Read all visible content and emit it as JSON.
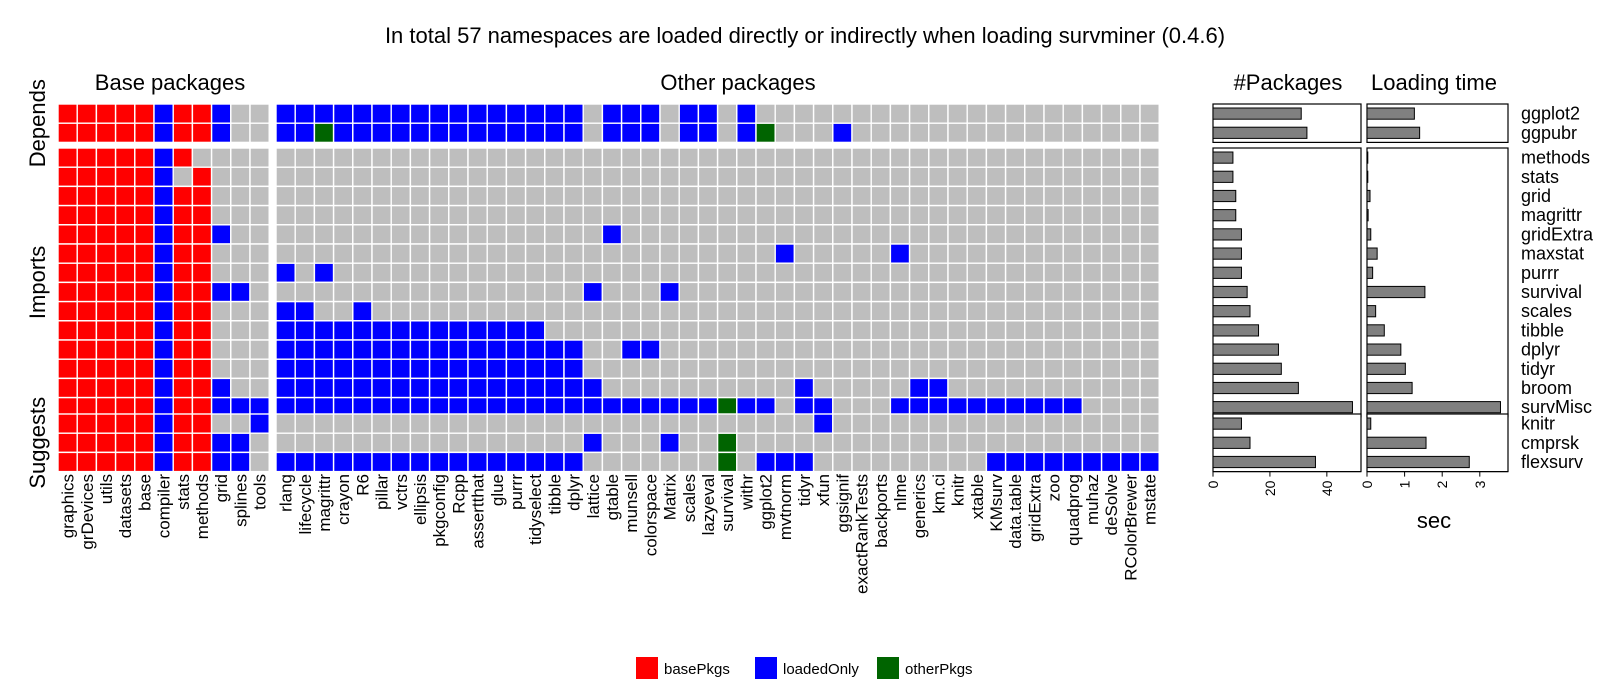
{
  "title": "In total 57 namespaces are loaded directly or indirectly when loading survminer (0.4.6)",
  "colors": {
    "basePkgs": "#ff0000",
    "loadedOnly": "#0000ff",
    "otherPkgs": "#006400",
    "empty": "#bebebe",
    "bar": "#808080"
  },
  "chart_data": [
    {
      "type": "heatmap",
      "panel_titles": {
        "base": "Base packages",
        "other": "Other packages"
      },
      "row_groups": [
        {
          "label": "Depends",
          "rows": [
            "ggplot2",
            "ggpubr"
          ]
        },
        {
          "label": "Imports",
          "rows": [
            "methods",
            "stats",
            "grid",
            "magrittr",
            "gridExtra",
            "maxstat",
            "purrr",
            "survival",
            "scales",
            "tibble",
            "dplyr",
            "tidyr",
            "broom",
            "survMisc"
          ]
        },
        {
          "label": "Suggests",
          "rows": [
            "knitr",
            "cmprsk",
            "flexsurv"
          ]
        }
      ],
      "base_columns": [
        "graphics",
        "grDevices",
        "utils",
        "datasets",
        "base",
        "compiler",
        "stats",
        "methods",
        "grid",
        "splines",
        "tools"
      ],
      "other_columns": [
        "rlang",
        "lifecycle",
        "magrittr",
        "crayon",
        "R6",
        "pillar",
        "vctrs",
        "ellipsis",
        "pkgconfig",
        "Rcpp",
        "assertthat",
        "glue",
        "purrr",
        "tidyselect",
        "tibble",
        "dplyr",
        "lattice",
        "gtable",
        "munsell",
        "colorspace",
        "Matrix",
        "scales",
        "lazyeval",
        "survival",
        "withr",
        "ggplot2",
        "mvtnorm",
        "tidyr",
        "xfun",
        "ggsignif",
        "exactRankTests",
        "backports",
        "nlme",
        "generics",
        "km.ci",
        "knitr",
        "xtable",
        "KMsurv",
        "data.table",
        "gridExtra",
        "zoo",
        "quadprog",
        "muhaz",
        "deSolve",
        "RColorBrewer",
        "mstate"
      ],
      "legend": [
        {
          "key": "B",
          "label": "basePkgs"
        },
        {
          "key": "L",
          "label": "loadedOnly"
        },
        {
          "key": "O",
          "label": "otherPkgs"
        }
      ],
      "cell_codes": {
        "B": "basePkgs",
        "L": "loadedOnly",
        "O": "otherPkgs",
        ".": "not loaded"
      },
      "base_cells": [
        "BBBBBLBBL..",
        "BBBBBLBBL..",
        "BBBBBLB....",
        "BBBBBL.B...",
        "BBBBBLBB...",
        "BBBBBLBB...",
        "BBBBBLBBL..",
        "BBBBBLBB...",
        "BBBBBLBB...",
        "BBBBBLBBLL.",
        "BBBBBLBB...",
        "BBBBBLBB...",
        "BBBBBLBB...",
        "BBBBBLBB...",
        "BBBBBLBBL..",
        "BBBBBLBBLLL",
        "BBBBBLBB..L",
        "BBBBBLBBLL.",
        "BBBBBLBBLL."
      ],
      "other_cells": [
        "LLLLLLLLLLLLLLLL.LLL.LL.L.....................",
        "LLOLLLLLLLLLLLLL.LLL.LL.LO...L................",
        "..............................................",
        "..............................................",
        "..............................................",
        "..............................................",
        ".................L............................",
        "..........................L.....L.............",
        "L.L...........................................",
        "................L...L.........................",
        "LL..L.........................................",
        "LLLLLLLLLLLLLL................................",
        "LLLLLLLLLLLLLLLL..LL..........................",
        "LLLLLLLLLLLLLLLL..............................",
        "LLLLLLLLLLLLLLLLL..........L.....LL...........",
        "LLLLLLLLLLLLLLLLLLLLLLLOLL.LL...LLLLLLLLLL....",
        "............................L.................",
        "................L...L..O......................",
        "LLLLLLLLLLLLLLLL.......O.LLL.........LLLLLLLLL"
      ]
    },
    {
      "type": "bar",
      "title": "#Packages",
      "orientation": "horizontal",
      "categories": [
        "ggplot2",
        "ggpubr",
        "methods",
        "stats",
        "grid",
        "magrittr",
        "gridExtra",
        "maxstat",
        "purrr",
        "survival",
        "scales",
        "tibble",
        "dplyr",
        "tidyr",
        "broom",
        "survMisc",
        "knitr",
        "cmprsk",
        "flexsurv"
      ],
      "values": [
        31,
        33,
        7,
        7,
        8,
        8,
        10,
        10,
        10,
        12,
        13,
        16,
        23,
        24,
        30,
        49,
        10,
        13,
        36
      ],
      "xlim": [
        0,
        52
      ],
      "xticks": [
        0,
        20,
        40
      ]
    },
    {
      "type": "bar",
      "title": "Loading time",
      "orientation": "horizontal",
      "xlabel": "sec",
      "categories": [
        "ggplot2",
        "ggpubr",
        "methods",
        "stats",
        "grid",
        "magrittr",
        "gridExtra",
        "maxstat",
        "purrr",
        "survival",
        "scales",
        "tibble",
        "dplyr",
        "tidyr",
        "broom",
        "survMisc",
        "knitr",
        "cmprsk",
        "flexsurv"
      ],
      "values": [
        1.26,
        1.4,
        0,
        0,
        0.08,
        0.03,
        0.1,
        0.27,
        0.15,
        1.54,
        0.23,
        0.46,
        0.9,
        1.02,
        1.2,
        3.55,
        0.1,
        1.57,
        2.72
      ],
      "xlim": [
        0,
        3.75
      ],
      "xticks": [
        0,
        1,
        2,
        3
      ]
    }
  ]
}
